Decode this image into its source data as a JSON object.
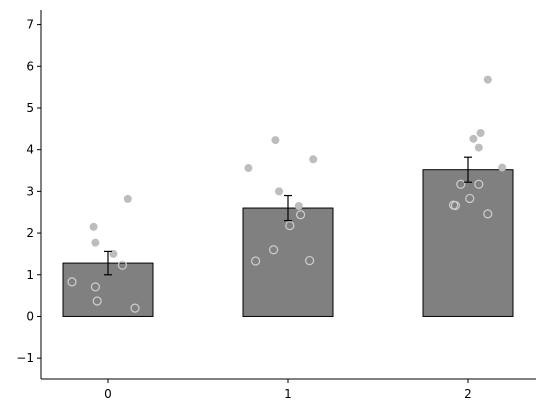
{
  "chart_data": {
    "type": "bar",
    "title": "",
    "xlabel": "",
    "ylabel": "",
    "categories": [
      "0",
      "1",
      "2"
    ],
    "values": [
      1.28,
      2.6,
      3.52
    ],
    "errors": [
      0.28,
      0.3,
      0.3
    ],
    "ylim": [
      -1.5,
      7.35
    ],
    "y_ticks": [
      "−1",
      "0",
      "1",
      "2",
      "3",
      "4",
      "5",
      "6",
      "7"
    ],
    "bar_color": "#808080",
    "bar_edge_color": "#000000",
    "point_color": "#bdbdbd",
    "points": [
      [
        {
          "x": -0.08,
          "y": 2.15,
          "style": "filled"
        },
        {
          "x": 0.11,
          "y": 2.82,
          "style": "filled"
        },
        {
          "x": -0.07,
          "y": 1.77,
          "style": "filled"
        },
        {
          "x": 0.03,
          "y": 1.5,
          "style": "filled"
        },
        {
          "x": -0.2,
          "y": 0.83,
          "style": "open"
        },
        {
          "x": -0.07,
          "y": 0.71,
          "style": "open"
        },
        {
          "x": -0.06,
          "y": 0.37,
          "style": "open"
        },
        {
          "x": 0.08,
          "y": 1.23,
          "style": "open"
        },
        {
          "x": 0.15,
          "y": 0.2,
          "style": "open"
        }
      ],
      [
        {
          "x": -0.22,
          "y": 3.56,
          "style": "filled"
        },
        {
          "x": -0.07,
          "y": 4.23,
          "style": "filled"
        },
        {
          "x": 0.14,
          "y": 3.77,
          "style": "filled"
        },
        {
          "x": -0.05,
          "y": 3.0,
          "style": "filled"
        },
        {
          "x": 0.06,
          "y": 2.65,
          "style": "filled"
        },
        {
          "x": -0.18,
          "y": 1.33,
          "style": "open"
        },
        {
          "x": -0.08,
          "y": 1.6,
          "style": "open"
        },
        {
          "x": 0.01,
          "y": 2.18,
          "style": "open"
        },
        {
          "x": 0.07,
          "y": 2.44,
          "style": "open"
        },
        {
          "x": 0.12,
          "y": 1.34,
          "style": "open"
        }
      ],
      [
        {
          "x": 0.11,
          "y": 5.68,
          "style": "filled"
        },
        {
          "x": 0.07,
          "y": 4.4,
          "style": "filled"
        },
        {
          "x": 0.03,
          "y": 4.26,
          "style": "filled"
        },
        {
          "x": 0.06,
          "y": 4.05,
          "style": "filled"
        },
        {
          "x": 0.19,
          "y": 3.57,
          "style": "filled"
        },
        {
          "x": -0.04,
          "y": 3.17,
          "style": "open"
        },
        {
          "x": 0.06,
          "y": 3.17,
          "style": "open"
        },
        {
          "x": 0.01,
          "y": 2.83,
          "style": "open"
        },
        {
          "x": -0.07,
          "y": 2.66,
          "style": "open"
        },
        {
          "x": -0.08,
          "y": 2.67,
          "style": "open"
        },
        {
          "x": 0.11,
          "y": 2.46,
          "style": "open"
        }
      ]
    ]
  }
}
